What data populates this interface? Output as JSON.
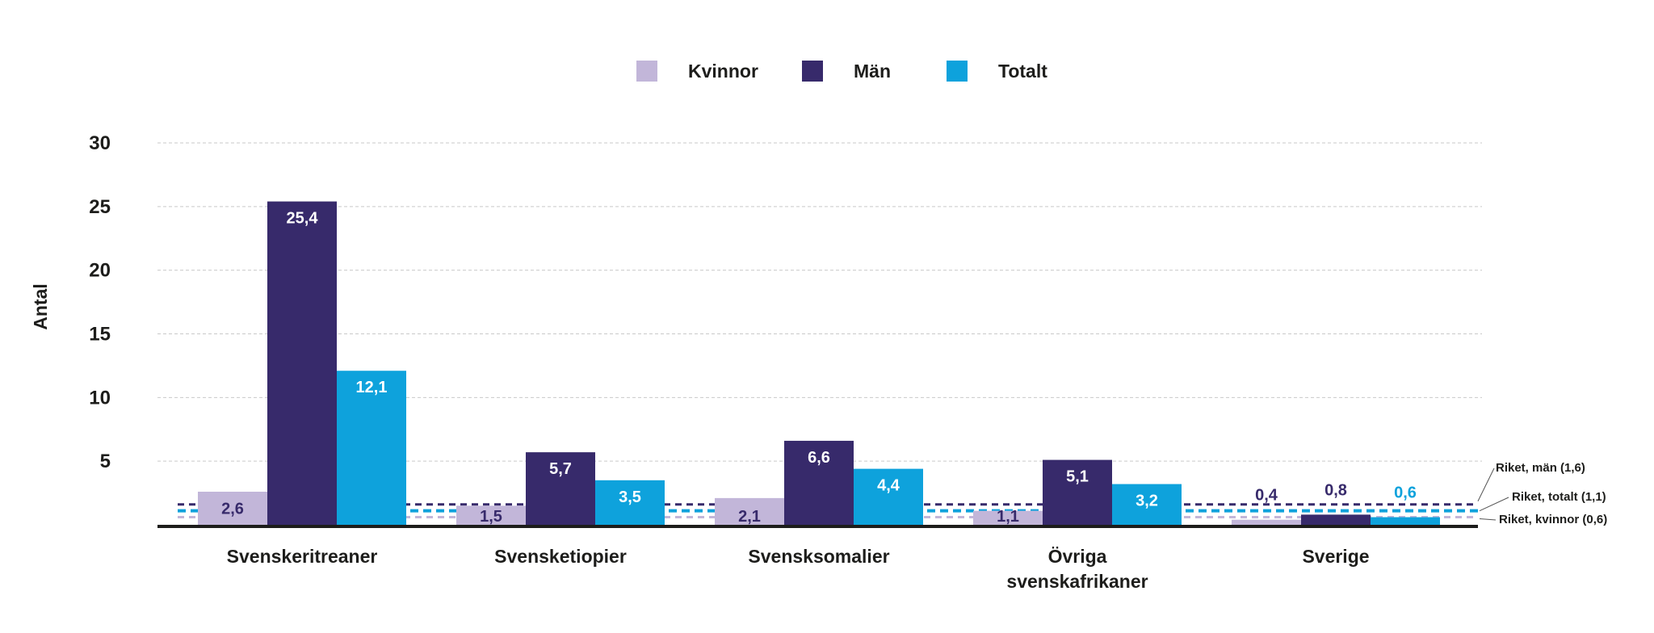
{
  "colors": {
    "kvinnor": "#c2b6d9",
    "man": "#372a6b",
    "totalt": "#0ea2dc",
    "grid": "#c9c9c9",
    "axis": "#1d1d1b"
  },
  "chart_data": {
    "type": "bar",
    "title": "",
    "xlabel": "",
    "ylabel": "Antal",
    "ylim": [
      0,
      30
    ],
    "yticks": [
      5,
      10,
      15,
      20,
      25,
      30
    ],
    "grid": true,
    "legend_position": "top-center",
    "categories": [
      [
        "Svenskeritreaner"
      ],
      [
        "Svensketiopier"
      ],
      [
        "Svensksomalier"
      ],
      [
        "Övriga",
        "svenskafrikaner"
      ],
      [
        "Sverige"
      ]
    ],
    "series": [
      {
        "name": "Kvinnor",
        "color_key": "kvinnor",
        "values": [
          2.6,
          1.5,
          2.1,
          1.1,
          0.4
        ],
        "labels": [
          "2,6",
          "1,5",
          "2,1",
          "1,1",
          "0,4"
        ]
      },
      {
        "name": "Män",
        "color_key": "man",
        "values": [
          25.4,
          5.7,
          6.6,
          5.1,
          0.8
        ],
        "labels": [
          "25,4",
          "5,7",
          "6,6",
          "5,1",
          "0,8"
        ]
      },
      {
        "name": "Totalt",
        "color_key": "totalt",
        "values": [
          12.1,
          3.5,
          4.4,
          3.2,
          0.6
        ],
        "labels": [
          "12,1",
          "3,5",
          "4,4",
          "3,2",
          "0,6"
        ]
      }
    ],
    "reference_lines": [
      {
        "label": "Riket, män (1,6)",
        "value": 1.6,
        "color_key": "man"
      },
      {
        "label": "Riket, totalt (1,1)",
        "value": 1.1,
        "color_key": "totalt"
      },
      {
        "label": "Riket, kvinnor (0,6)",
        "value": 0.6,
        "color_key": "kvinnor"
      }
    ]
  }
}
